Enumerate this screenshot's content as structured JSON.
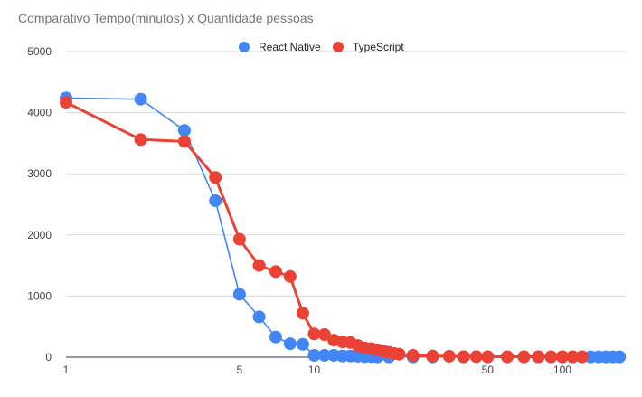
{
  "chart_data": {
    "type": "line",
    "title": "Comparativo Tempo(minutos) x Quantidade pessoas",
    "xlabel": "",
    "ylabel": "",
    "xscale": "log",
    "xlim": [
      1,
      180
    ],
    "ylim": [
      0,
      5000
    ],
    "x_ticks": [
      1,
      5,
      10,
      50,
      100
    ],
    "y_ticks": [
      0,
      1000,
      2000,
      3000,
      4000,
      5000
    ],
    "grid": true,
    "legend": "top-center",
    "series": [
      {
        "name": "React Native",
        "color": "#4285f4",
        "points": [
          [
            1,
            4240
          ],
          [
            2,
            4220
          ],
          [
            3,
            3710
          ],
          [
            4,
            2560
          ],
          [
            5,
            1030
          ],
          [
            6,
            660
          ],
          [
            7,
            330
          ],
          [
            8,
            220
          ],
          [
            9,
            210
          ],
          [
            10,
            30
          ],
          [
            11,
            30
          ],
          [
            12,
            30
          ],
          [
            13,
            20
          ],
          [
            14,
            20
          ],
          [
            15,
            15
          ],
          [
            16,
            10
          ],
          [
            17,
            10
          ],
          [
            18,
            5
          ],
          [
            20,
            5
          ],
          [
            25,
            5
          ],
          [
            30,
            5
          ],
          [
            40,
            5
          ],
          [
            50,
            5
          ],
          [
            60,
            5
          ],
          [
            70,
            5
          ],
          [
            80,
            5
          ],
          [
            90,
            5
          ],
          [
            100,
            5
          ],
          [
            110,
            5
          ],
          [
            120,
            5
          ],
          [
            130,
            5
          ],
          [
            140,
            5
          ],
          [
            150,
            5
          ],
          [
            160,
            5
          ],
          [
            170,
            5
          ]
        ]
      },
      {
        "name": "TypeScript",
        "color": "#ea4335",
        "points": [
          [
            1,
            4170
          ],
          [
            2,
            3560
          ],
          [
            3,
            3530
          ],
          [
            4,
            2940
          ],
          [
            5,
            1930
          ],
          [
            6,
            1500
          ],
          [
            7,
            1400
          ],
          [
            8,
            1320
          ],
          [
            9,
            720
          ],
          [
            10,
            380
          ],
          [
            11,
            370
          ],
          [
            12,
            280
          ],
          [
            13,
            250
          ],
          [
            14,
            240
          ],
          [
            15,
            190
          ],
          [
            16,
            150
          ],
          [
            17,
            140
          ],
          [
            18,
            120
          ],
          [
            19,
            100
          ],
          [
            20,
            80
          ],
          [
            21,
            60
          ],
          [
            22,
            50
          ],
          [
            25,
            30
          ],
          [
            30,
            20
          ],
          [
            35,
            15
          ],
          [
            40,
            10
          ],
          [
            45,
            10
          ],
          [
            50,
            8
          ],
          [
            60,
            8
          ],
          [
            70,
            8
          ],
          [
            80,
            8
          ],
          [
            90,
            8
          ],
          [
            100,
            8
          ],
          [
            110,
            8
          ],
          [
            120,
            8
          ]
        ]
      }
    ]
  }
}
